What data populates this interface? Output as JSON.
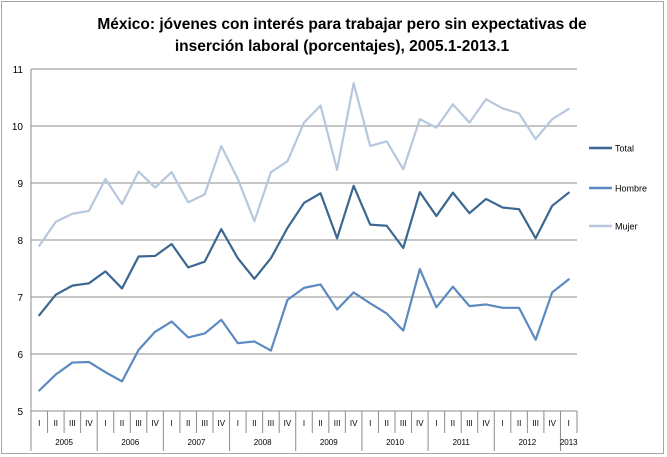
{
  "chart_data": {
    "type": "line",
    "title_line1": "México: jóvenes con interés para trabajar pero sin expectativas de",
    "title_line2": "inserción laboral (porcentajes), 2005.1-2013.1",
    "xlabel": "",
    "ylabel": "",
    "ylim": [
      5,
      11
    ],
    "yticks": [
      "5",
      "6",
      "7",
      "8",
      "9",
      "10",
      "11"
    ],
    "quarter_labels": [
      "I",
      "II",
      "III",
      "IV",
      "I",
      "II",
      "III",
      "IV",
      "I",
      "II",
      "III",
      "IV",
      "I",
      "II",
      "III",
      "IV",
      "I",
      "II",
      "III",
      "IV",
      "I",
      "II",
      "III",
      "IV",
      "I",
      "II",
      "III",
      "IV",
      "I",
      "II",
      "III",
      "IV",
      "I"
    ],
    "years": [
      "2005",
      "2006",
      "2007",
      "2008",
      "2009",
      "2010",
      "2011",
      "2012",
      "2013"
    ],
    "grid": true,
    "legend_position": "right",
    "series": [
      {
        "name": "Total",
        "color": "#3b6791",
        "values": [
          6.68,
          7.04,
          7.2,
          7.24,
          7.45,
          7.15,
          7.71,
          7.72,
          7.93,
          7.52,
          7.62,
          8.19,
          7.68,
          7.32,
          7.68,
          8.21,
          8.65,
          8.82,
          8.03,
          8.95,
          8.27,
          8.25,
          7.86,
          8.84,
          8.42,
          8.83,
          8.47,
          8.72,
          8.57,
          8.54,
          8.03,
          8.6,
          8.83
        ]
      },
      {
        "name": "Hombre",
        "color": "#5b8ac1",
        "values": [
          5.36,
          5.64,
          5.85,
          5.86,
          5.68,
          5.52,
          6.07,
          6.39,
          6.57,
          6.29,
          6.36,
          6.6,
          6.19,
          6.22,
          6.06,
          6.95,
          7.16,
          7.22,
          6.78,
          7.08,
          6.89,
          6.71,
          6.41,
          7.49,
          6.82,
          7.18,
          6.84,
          6.87,
          6.81,
          6.81,
          6.25,
          7.08,
          7.31
        ]
      },
      {
        "name": "Mujer",
        "color": "#b7c7dd",
        "values": [
          7.9,
          8.32,
          8.46,
          8.51,
          9.07,
          8.63,
          9.2,
          8.92,
          9.19,
          8.66,
          8.8,
          9.65,
          9.07,
          8.33,
          9.19,
          9.38,
          10.06,
          10.36,
          9.23,
          10.75,
          9.65,
          9.73,
          9.24,
          10.12,
          9.97,
          10.38,
          10.06,
          10.47,
          10.31,
          10.22,
          9.77,
          10.12,
          10.3
        ]
      }
    ]
  }
}
